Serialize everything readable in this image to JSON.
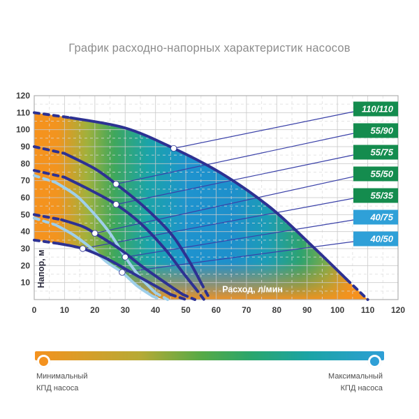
{
  "page": {
    "title": "График расходно-напорных характеристик насосов"
  },
  "chart_data": {
    "type": "line",
    "title": "График расходно-напорных характеристик насосов",
    "xlabel": "Расход, л/мин",
    "ylabel": "Напор, м",
    "xlim": [
      0,
      120
    ],
    "ylim": [
      0,
      120
    ],
    "xticks": [
      0,
      10,
      20,
      30,
      40,
      50,
      60,
      70,
      80,
      90,
      100,
      110,
      120
    ],
    "yticks": [
      10,
      20,
      30,
      40,
      50,
      60,
      70,
      80,
      90,
      100,
      110,
      120
    ],
    "minor_step": 5,
    "grid": true,
    "legend_position": "right",
    "curves": [
      {
        "name": "110/110",
        "style": "dark",
        "points": [
          [
            0,
            110
          ],
          [
            12,
            107
          ],
          [
            30,
            101
          ],
          [
            46,
            89
          ],
          [
            62,
            74
          ],
          [
            78,
            54
          ],
          [
            92,
            31
          ],
          [
            103,
            12
          ],
          [
            110,
            0
          ]
        ],
        "marker": [
          46,
          89
        ]
      },
      {
        "name": "55/90",
        "style": "dark",
        "points": [
          [
            0,
            90
          ],
          [
            10,
            86
          ],
          [
            20,
            77
          ],
          [
            27,
            68
          ],
          [
            36,
            55
          ],
          [
            45,
            39
          ],
          [
            51,
            23
          ],
          [
            55,
            10
          ],
          [
            58,
            0
          ]
        ],
        "marker": [
          27,
          68
        ]
      },
      {
        "name": "55/75",
        "style": "dark",
        "points": [
          [
            0,
            76
          ],
          [
            10,
            72
          ],
          [
            19,
            64
          ],
          [
            27,
            56
          ],
          [
            35,
            45
          ],
          [
            43,
            30
          ],
          [
            49,
            16
          ],
          [
            53,
            7
          ],
          [
            56,
            0
          ]
        ],
        "marker": [
          27,
          56
        ]
      },
      {
        "name": "55/50",
        "style": "dark",
        "points": [
          [
            0,
            50
          ],
          [
            9,
            47
          ],
          [
            16,
            43
          ],
          [
            20,
            39
          ],
          [
            28,
            30
          ],
          [
            36,
            19
          ],
          [
            44,
            9
          ],
          [
            49,
            3
          ],
          [
            53,
            0
          ]
        ],
        "marker": [
          20,
          39
        ]
      },
      {
        "name": "55/35",
        "style": "dark",
        "points": [
          [
            0,
            35
          ],
          [
            8,
            33
          ],
          [
            16,
            30
          ],
          [
            24,
            24
          ],
          [
            32,
            16
          ],
          [
            40,
            8
          ],
          [
            45,
            3
          ],
          [
            50,
            0
          ]
        ],
        "marker": [
          16,
          30
        ]
      },
      {
        "name": "40/75",
        "style": "light",
        "points": [
          [
            0,
            73
          ],
          [
            7,
            69
          ],
          [
            14,
            61
          ],
          [
            20,
            50
          ],
          [
            25,
            39
          ],
          [
            30,
            25
          ],
          [
            35,
            13
          ],
          [
            40,
            4
          ],
          [
            44,
            0
          ]
        ],
        "marker": [
          30,
          25
        ]
      },
      {
        "name": "40/50",
        "style": "light",
        "points": [
          [
            0,
            48
          ],
          [
            7,
            44
          ],
          [
            13,
            38
          ],
          [
            19,
            30
          ],
          [
            24,
            22
          ],
          [
            29,
            16
          ],
          [
            34,
            8
          ],
          [
            39,
            2
          ],
          [
            42,
            0
          ]
        ],
        "marker": [
          29,
          16
        ]
      }
    ],
    "badges": [
      {
        "label": "110/110",
        "color": "green"
      },
      {
        "label": "55/90",
        "color": "green"
      },
      {
        "label": "55/75",
        "color": "green"
      },
      {
        "label": "55/50",
        "color": "green"
      },
      {
        "label": "55/35",
        "color": "green"
      },
      {
        "label": "40/75",
        "color": "blue"
      },
      {
        "label": "40/50",
        "color": "blue"
      }
    ],
    "region_lower": [
      [
        43,
        0
      ],
      [
        39,
        2
      ],
      [
        34,
        8
      ],
      [
        29,
        16
      ],
      [
        24,
        22
      ],
      [
        21,
        26
      ],
      [
        16,
        30
      ],
      [
        8,
        33
      ],
      [
        0,
        35
      ]
    ],
    "colors": {
      "curve_dark": "#2D3192",
      "curve_light": "#9FCFEA",
      "connector": "#3A41A8",
      "badge_green": "#148C4E",
      "badge_blue": "#2FA0D8",
      "badge_text": "#FFFFFF",
      "grid_major": "#C9C9C9",
      "grid_minor": "#DCDCDC",
      "plot_border": "#B0B0B0",
      "tick_text": "#3B3B3B",
      "ylabel_text": "#2A2A3C",
      "xlabel_text": "#FFFFFF",
      "marker_fill": "#FFFFFF",
      "efficiency_gradient": [
        {
          "off": "0%",
          "c": "#F6921E"
        },
        {
          "off": "7%",
          "c": "#F2941F"
        },
        {
          "off": "16%",
          "c": "#9FB13C"
        },
        {
          "off": "24%",
          "c": "#3FA75C"
        },
        {
          "off": "34%",
          "c": "#1BA4A8"
        },
        {
          "off": "46%",
          "c": "#1E93CE"
        },
        {
          "off": "60%",
          "c": "#1E90CB"
        },
        {
          "off": "70%",
          "c": "#1C9DB5"
        },
        {
          "off": "80%",
          "c": "#2EA36F"
        },
        {
          "off": "88%",
          "c": "#7FAC49"
        },
        {
          "off": "95%",
          "c": "#F0931F"
        },
        {
          "off": "100%",
          "c": "#F6921E"
        }
      ],
      "bottom_glow": "#F6921E"
    }
  },
  "footer": {
    "bar_gradient": [
      "#F4921E 0%",
      "#B7AA35 30%",
      "#55AA47 48%",
      "#2AA66D 62%",
      "#1BA4A4 78%",
      "#2E9FD6 100%"
    ],
    "min_dot_color": "#F4921E",
    "max_dot_color": "#2E9FD6",
    "min_line1": "Минимальный",
    "min_line2": "КПД насоса",
    "max_line1": "Максимальный",
    "max_line2": "КПД насоса"
  }
}
